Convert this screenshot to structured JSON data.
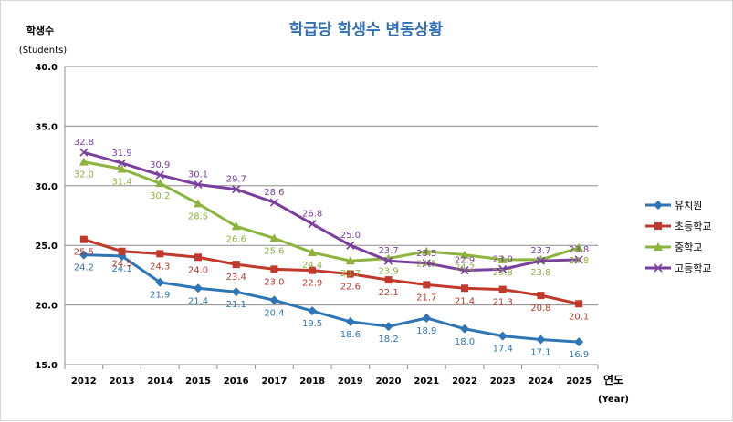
{
  "chart_data": {
    "type": "line",
    "title": "학급당 학생수 변동상황",
    "ylabel": "학생수",
    "ylabel_sub": "(Students)",
    "xlabel": "연도",
    "xlabel_sub": "(Year)",
    "ylim": [
      15.0,
      40.0
    ],
    "yticks": [
      "15.0",
      "20.0",
      "25.0",
      "30.0",
      "35.0",
      "40.0"
    ],
    "x": [
      "2012",
      "2013",
      "2014",
      "2015",
      "2016",
      "2017",
      "2018",
      "2019",
      "2020",
      "2021",
      "2022",
      "2023",
      "2024",
      "2025"
    ],
    "legend_position": "right",
    "series": [
      {
        "name": "유치원",
        "color": "#2e75b6",
        "marker": "diamond",
        "label_pos": "below",
        "values": [
          24.2,
          24.1,
          21.9,
          21.4,
          21.1,
          20.4,
          19.5,
          18.6,
          18.2,
          18.9,
          18.0,
          17.4,
          17.1,
          16.9
        ],
        "labels": [
          "24.2",
          "24.1",
          "21.9",
          "21.4",
          "21.1",
          "20.4",
          "19.5",
          "18.6",
          "18.2",
          "18.9",
          "18.0",
          "17.4",
          "17.1",
          "16.9"
        ]
      },
      {
        "name": "초등학교",
        "color": "#c0392b",
        "marker": "square",
        "label_pos": "below",
        "values": [
          25.5,
          24.5,
          24.3,
          24.0,
          23.4,
          23.0,
          22.9,
          22.6,
          22.1,
          21.7,
          21.4,
          21.3,
          20.8,
          20.1
        ],
        "labels": [
          "25.5",
          "24.5",
          "24.3",
          "24.0",
          "23.4",
          "23.0",
          "22.9",
          "22.6",
          "22.1",
          "21.7",
          "21.4",
          "21.3",
          "20.8",
          "20.1"
        ]
      },
      {
        "name": "중학교",
        "color": "#8db43e",
        "marker": "triangle",
        "label_pos": "below",
        "values": [
          32.0,
          31.4,
          30.2,
          28.5,
          26.6,
          25.6,
          24.4,
          23.7,
          23.9,
          24.5,
          24.2,
          23.8,
          23.8,
          24.8
        ],
        "labels": [
          "32.0",
          "31.4",
          "30.2",
          "28.5",
          "26.6",
          "25.6",
          "24.4",
          "23.7",
          "23.9",
          "24.5",
          "24.2",
          "23.8",
          "23.8",
          "24.8"
        ]
      },
      {
        "name": "고등학교",
        "color": "#7b3f9e",
        "marker": "x",
        "label_pos": "above",
        "values": [
          32.8,
          31.9,
          30.9,
          30.1,
          29.7,
          28.6,
          26.8,
          25.0,
          23.7,
          23.5,
          22.9,
          23.0,
          23.7,
          23.8
        ],
        "labels": [
          "32.8",
          "31.9",
          "30.9",
          "30.1",
          "29.7",
          "28.6",
          "26.8",
          "25.0",
          "23.7",
          "23.5",
          "22.9",
          "23.0",
          "23.7",
          "23.8"
        ]
      }
    ]
  }
}
